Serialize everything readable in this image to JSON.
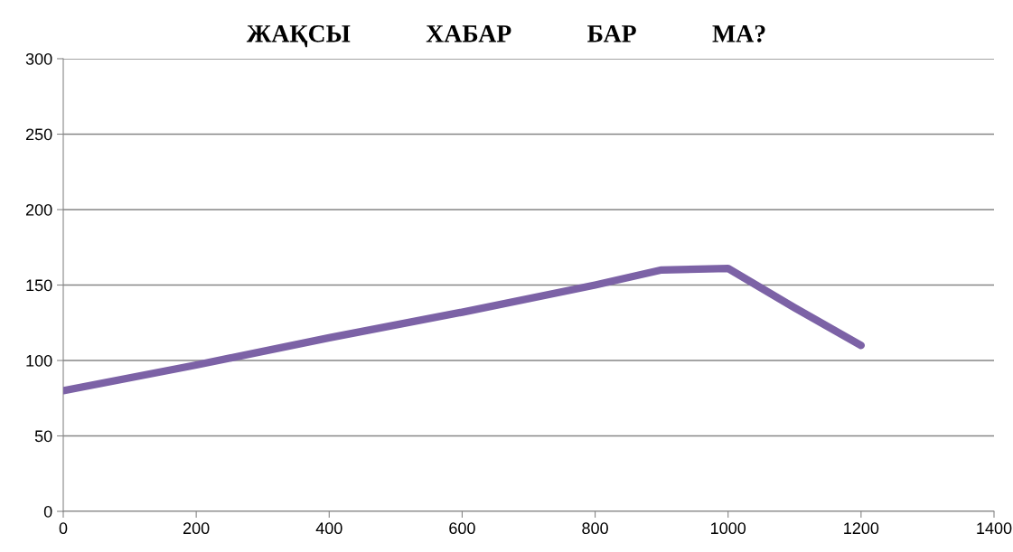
{
  "chart_data": {
    "type": "line",
    "title": "ЖАҚСЫ ХАБАР БАР МА?",
    "x": [
      0,
      200,
      400,
      600,
      800,
      900,
      1000,
      1100,
      1200
    ],
    "series": [
      {
        "color": "#7c62a6",
        "values": [
          80,
          97,
          115,
          132,
          150,
          160,
          161,
          135,
          110
        ]
      }
    ],
    "xlim": [
      0,
      1400
    ],
    "xticks": [
      0,
      200,
      400,
      600,
      800,
      1000,
      1200,
      1400
    ],
    "ylim": [
      0,
      300
    ],
    "yticks": [
      0,
      50,
      100,
      150,
      200,
      250,
      300
    ],
    "grid": "y",
    "legend": false,
    "marker": "none",
    "line_style": "solid"
  }
}
